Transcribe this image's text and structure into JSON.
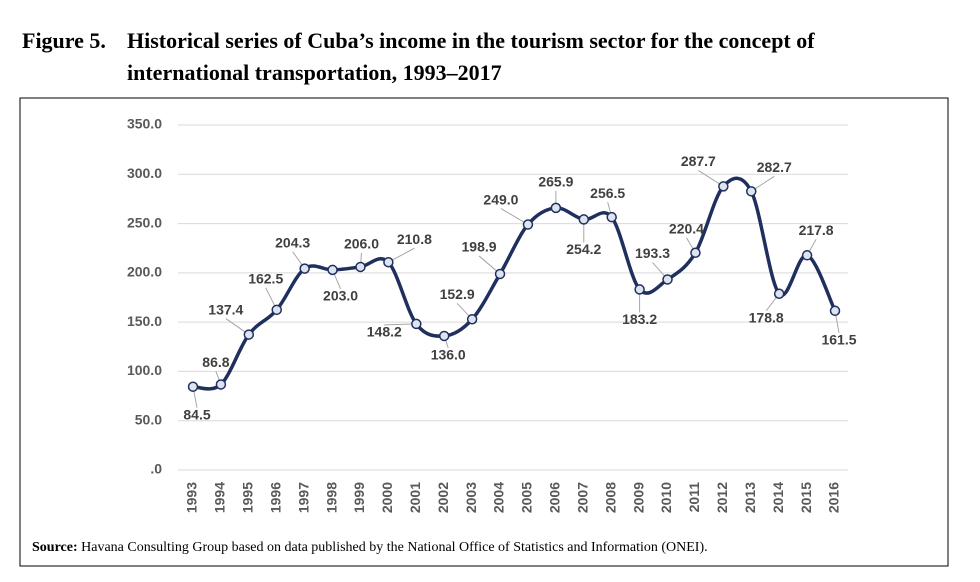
{
  "chart_data": {
    "type": "line",
    "figure_label": "Figure 5.",
    "title": [
      "Historical series of Cuba’s income in the tourism sector for the concept of",
      "international transportation, 1993–2017"
    ],
    "source_label": "Source:",
    "source": "Havana Consulting Group based on data published by the National Office of Statistics and Information (ONEI).",
    "categories": [
      "1993",
      "1994",
      "1995",
      "1996",
      "1997",
      "1998",
      "1999",
      "2000",
      "2001",
      "2002",
      "2003",
      "2004",
      "2005",
      "2006",
      "2007",
      "2008",
      "2009",
      "2010",
      "2011",
      "2012",
      "2013",
      "2014",
      "2015",
      "2016"
    ],
    "values": [
      84.5,
      86.8,
      137.4,
      162.5,
      204.3,
      203.0,
      206.0,
      210.8,
      148.2,
      136.0,
      152.9,
      198.9,
      249.0,
      265.9,
      254.2,
      256.5,
      183.2,
      193.3,
      220.4,
      287.7,
      282.7,
      178.8,
      217.8,
      161.5
    ],
    "value_labels": [
      "84.5",
      "86.8",
      "137.4",
      "162.5",
      "204.3",
      "203.0",
      "206.0",
      "210.8",
      "148.2",
      "136.0",
      "152.9",
      "198.9",
      "249.0",
      "265.9",
      "254.2",
      "256.5",
      "183.2",
      "193.3",
      "220.4",
      "287.7",
      "282.7",
      "178.8",
      "217.8",
      "161.5"
    ],
    "color": "#1f2f5e",
    "ylim": [
      0,
      350
    ],
    "yticks": [
      {
        "value": 0,
        "label": ".0"
      },
      {
        "value": 50,
        "label": "50.0"
      },
      {
        "value": 100,
        "label": "100.0"
      },
      {
        "value": 150,
        "label": "150.0"
      },
      {
        "value": 200,
        "label": "200.0"
      },
      {
        "value": 250,
        "label": "250.0"
      },
      {
        "value": 300,
        "label": "300.0"
      },
      {
        "value": 350,
        "label": "350.0"
      }
    ],
    "grid": true
  }
}
